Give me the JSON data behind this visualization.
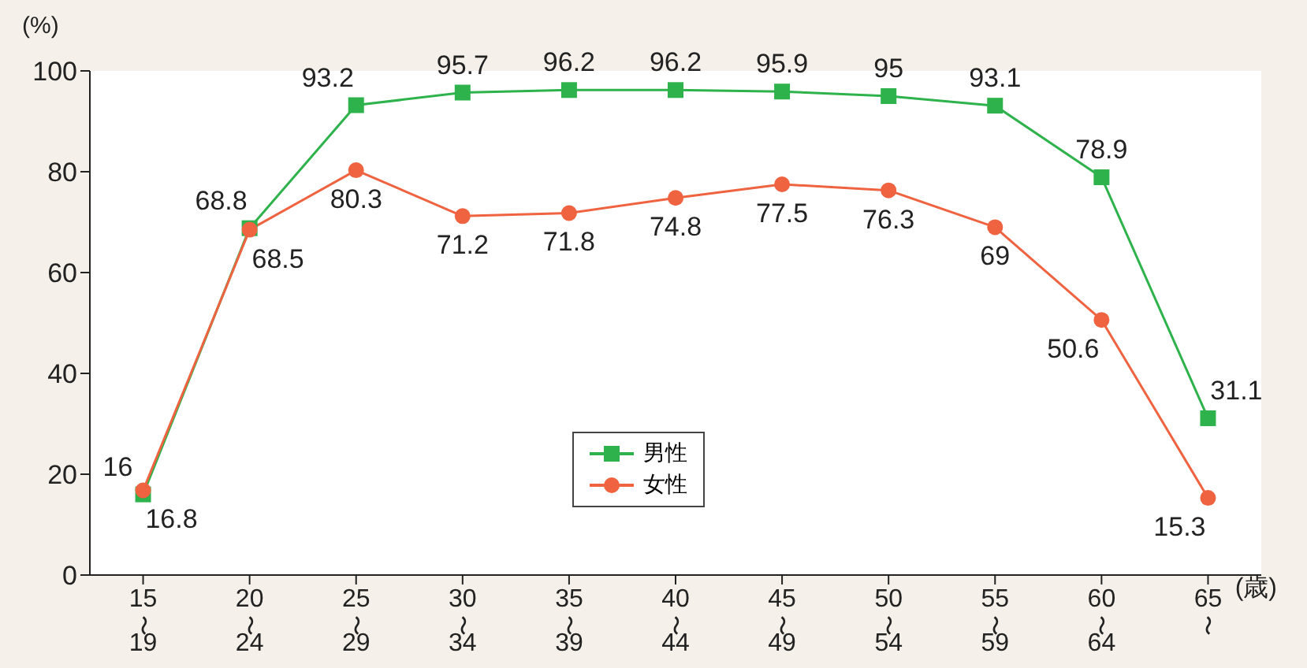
{
  "chart_data": {
    "type": "line",
    "ylabel": "(%)",
    "xlabel": "(歳)",
    "categories": [
      "15〜19",
      "20〜24",
      "25〜29",
      "30〜34",
      "35〜39",
      "40〜44",
      "45〜49",
      "50〜54",
      "55〜59",
      "60〜64",
      "65〜"
    ],
    "series": [
      {
        "name": "男性",
        "color": "#2eb24b",
        "marker": "square",
        "values": [
          16,
          68.8,
          93.2,
          95.7,
          96.2,
          96.2,
          95.9,
          95,
          93.1,
          78.9,
          31.1
        ]
      },
      {
        "name": "女性",
        "color": "#ef6340",
        "marker": "circle",
        "values": [
          16.8,
          68.5,
          80.3,
          71.2,
          71.8,
          74.8,
          77.5,
          76.3,
          69,
          50.6,
          15.3
        ]
      }
    ],
    "ylim": [
      0,
      100
    ],
    "yticks": [
      0,
      20,
      40,
      60,
      80,
      100
    ],
    "grid": false,
    "legend": "center",
    "data_labels": true
  }
}
